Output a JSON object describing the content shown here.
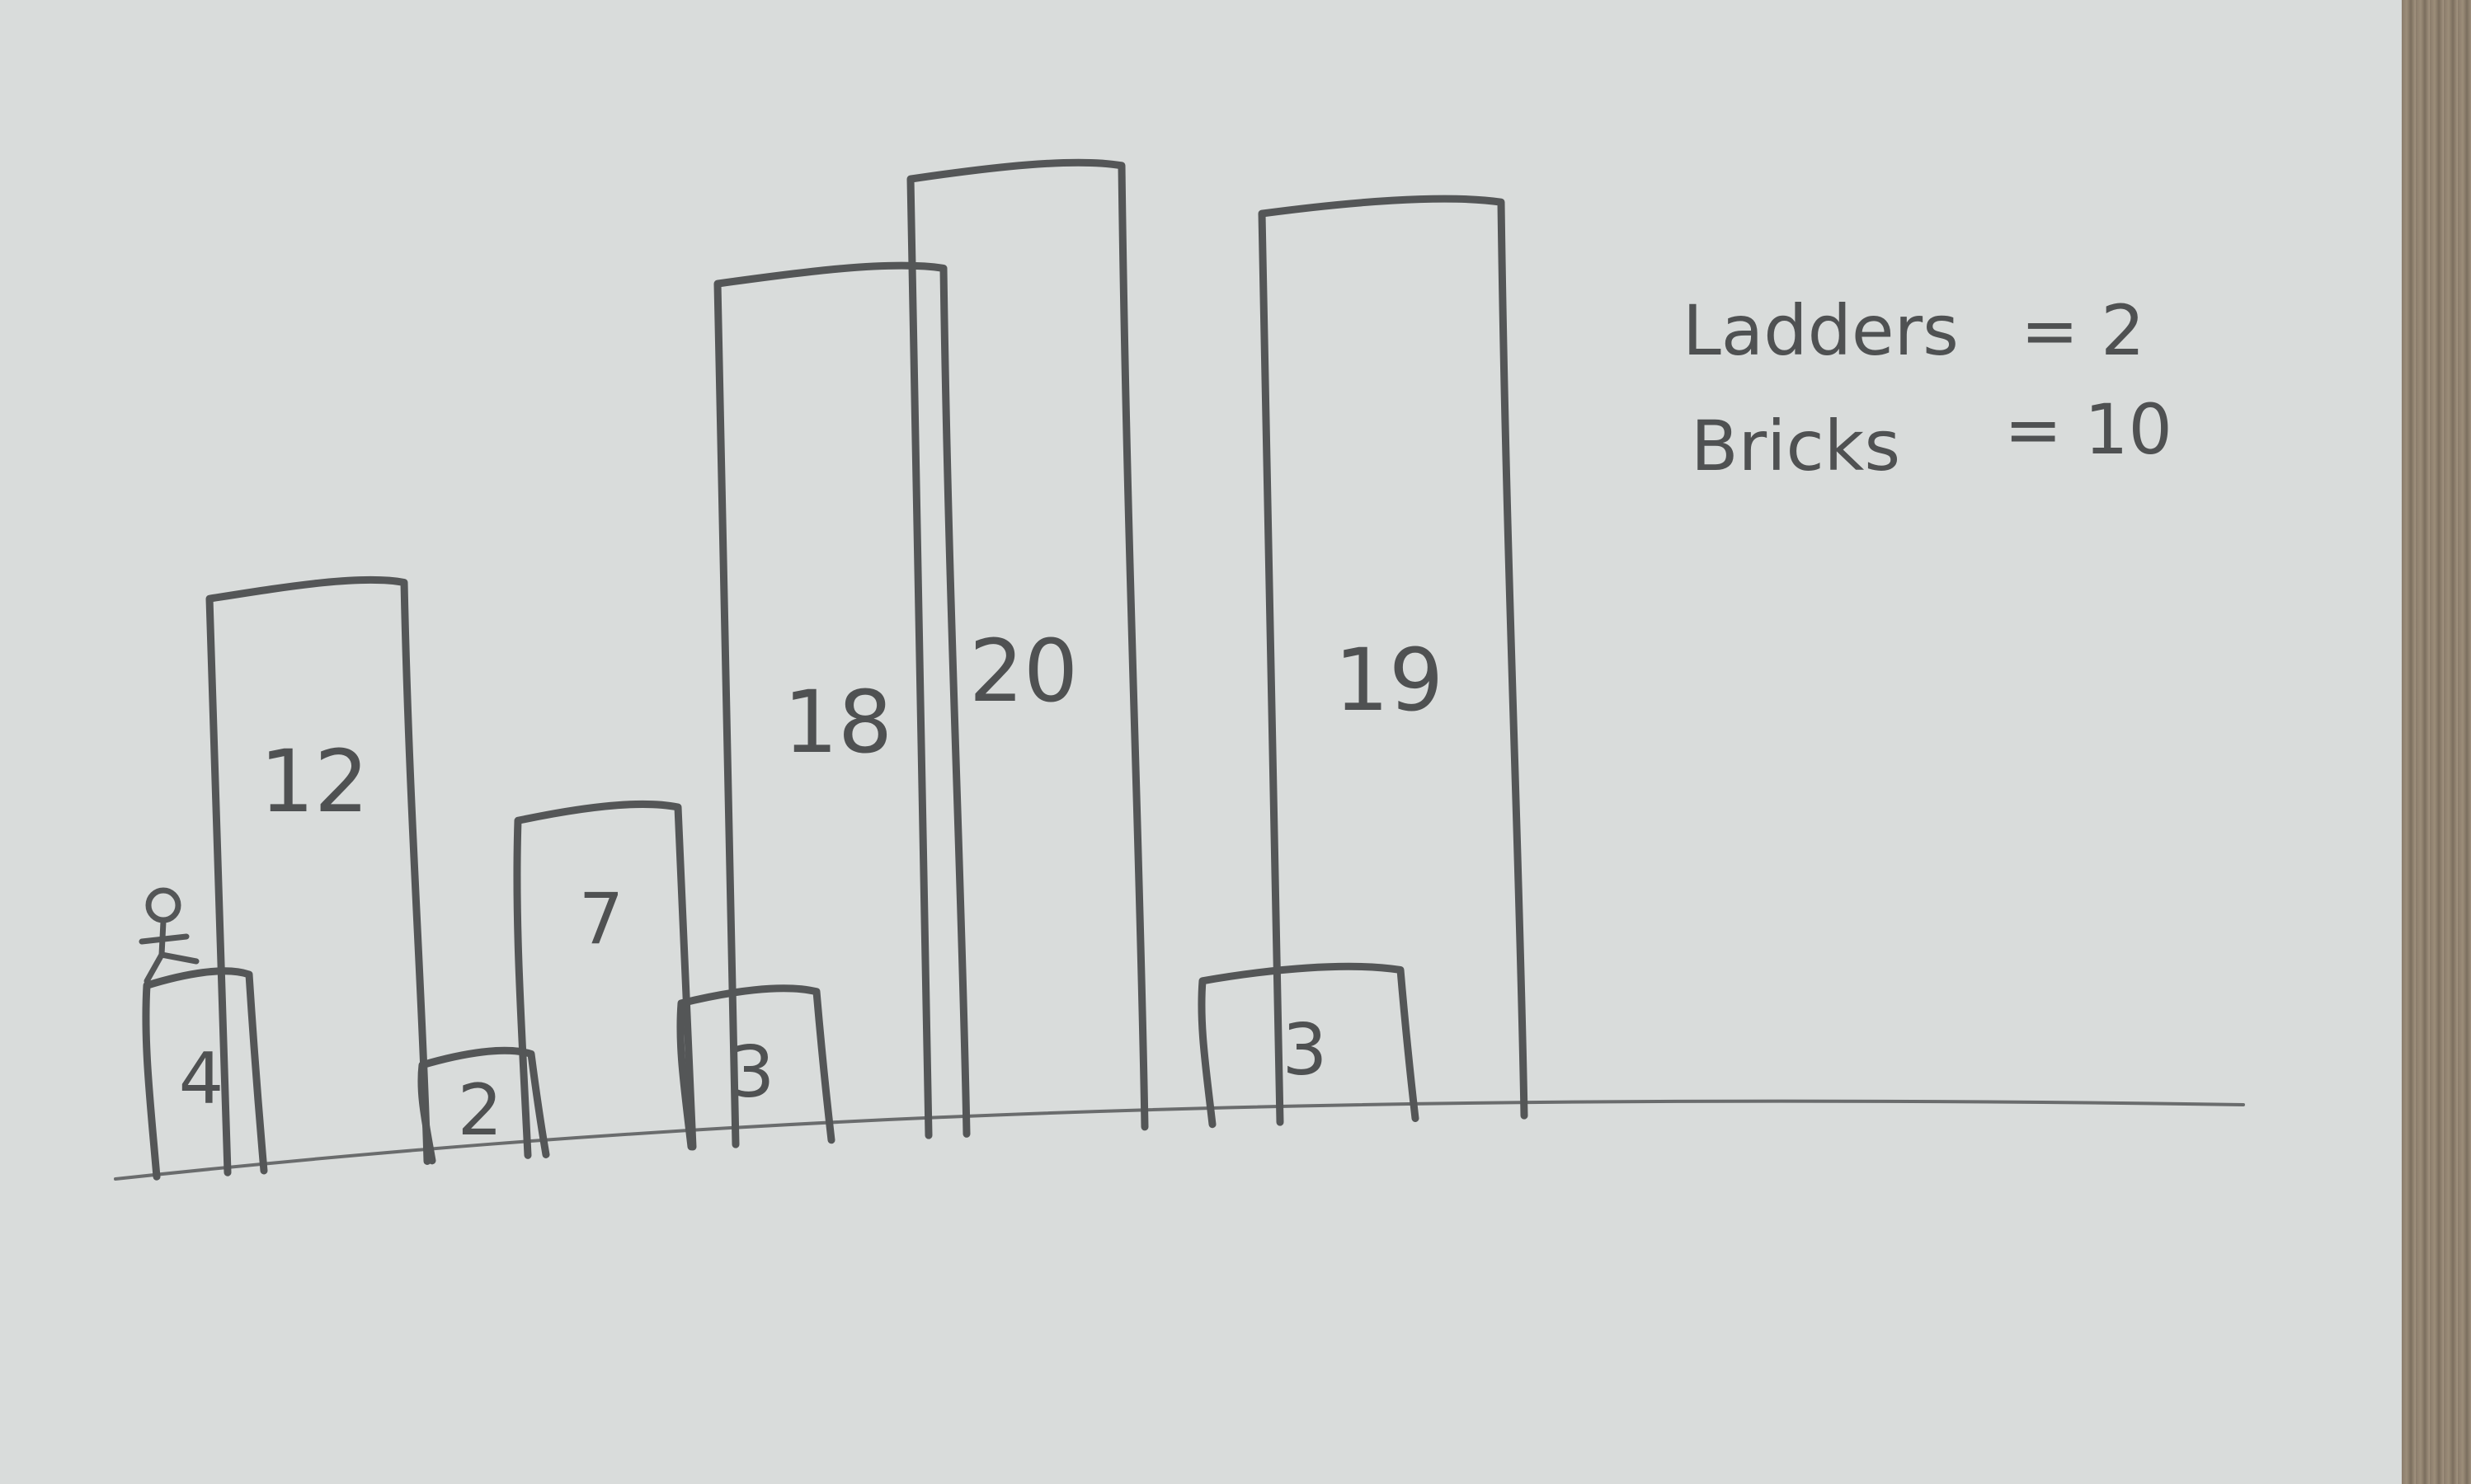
{
  "chart_data": {
    "type": "bar",
    "values": [
      4,
      12,
      2,
      7,
      3,
      18,
      20,
      3,
      19
    ]
  },
  "notes": {
    "ladders_label": "Ladders",
    "ladders_value": "= 2",
    "bricks_label": "Bricks",
    "bricks_value": "= 10"
  },
  "colors": {
    "board": "#d9dcdb",
    "ink": "#545657"
  },
  "icons": {
    "person": "stick-figure-icon"
  }
}
